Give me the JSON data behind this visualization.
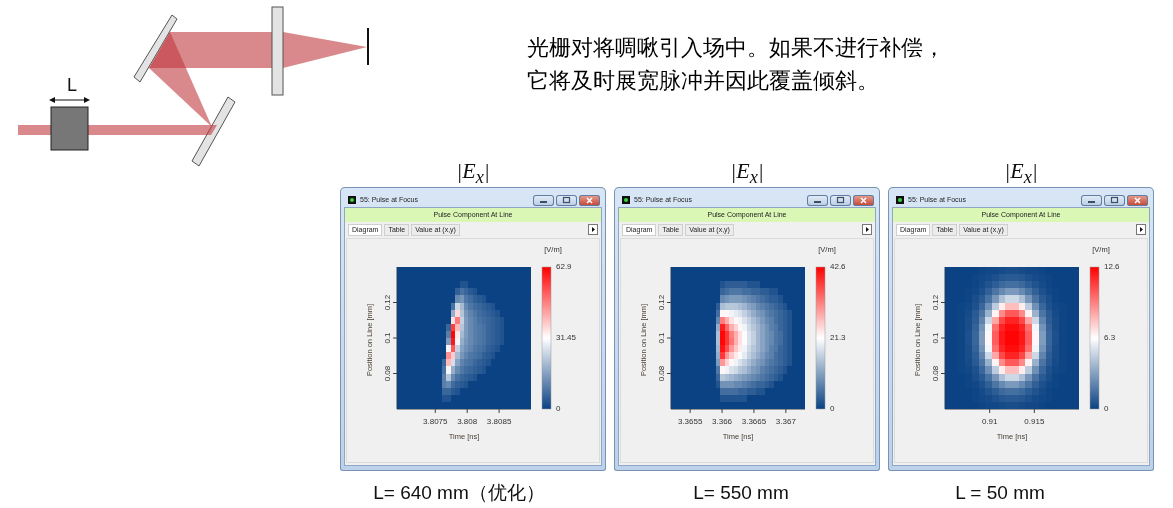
{
  "chart_data": [
    {
      "type": "other",
      "annotations": [
        "L",
        "光栅对将啁啾引入场中。如果不进行补偿，",
        "它将及时展宽脉冲并因此覆盖倾斜。"
      ]
    },
    {
      "type": "heatmap",
      "title": "|E$_{x}$|",
      "subtitle": "Pulse Component At Line",
      "xlabel": "Time [ns]",
      "ylabel": "Position on Line [mm]",
      "clabel": "[V/m]",
      "annotations": [
        "55: Pulse at Focus",
        "Diagram",
        "Table",
        "Value at (x,y)",
        "L= 640 mm（优化）"
      ],
      "x": [
        3.806935,
        3.807005,
        3.807075,
        3.807145,
        3.807215,
        3.807285,
        3.807355,
        3.807425,
        3.807495,
        3.807565,
        3.807635,
        3.807705,
        3.807775,
        3.807845,
        3.807915,
        3.807985,
        3.808055,
        3.808125,
        3.808195,
        3.808265,
        3.808335,
        3.808405,
        3.808475,
        3.808545,
        3.808615,
        3.808685,
        3.808755,
        3.808825,
        3.808895,
        3.808965
      ],
      "xlim": [
        3.8069,
        3.809
      ],
      "xticks": [
        3.8075,
        3.808,
        3.8085
      ],
      "ylim": [
        0.06,
        0.14
      ],
      "yticks": [
        0.08,
        0.1,
        0.12
      ],
      "clim": [
        0,
        62.9
      ],
      "cticks": [
        0,
        31.45,
        62.9
      ],
      "colors": [
        "#0a4283",
        "#ffffff",
        "#ff0000"
      ],
      "cells": [
        [
          0,
          0,
          0,
          0,
          0,
          0,
          0,
          0,
          0,
          0,
          0,
          0,
          0,
          0,
          0,
          0,
          0,
          0,
          0,
          0,
          0,
          0,
          0,
          0,
          0,
          0,
          0,
          0,
          0,
          0
        ],
        [
          0,
          0,
          0,
          0,
          0,
          0,
          0,
          0,
          0,
          0,
          0,
          0,
          0,
          0,
          0,
          0,
          0,
          0,
          0,
          0,
          0,
          0,
          0,
          0,
          0,
          0,
          0,
          0,
          0,
          0
        ],
        [
          0,
          0,
          0,
          0,
          0,
          0,
          0,
          0,
          0,
          0,
          0,
          0,
          0,
          0,
          3,
          3,
          0,
          0,
          0,
          0,
          0,
          0,
          0,
          0,
          0,
          0,
          0,
          0,
          0,
          0
        ],
        [
          0,
          0,
          0,
          0,
          0,
          0,
          0,
          0,
          0,
          0,
          0,
          0,
          0,
          5,
          8,
          6,
          4,
          3,
          0,
          0,
          0,
          0,
          0,
          0,
          0,
          0,
          0,
          0,
          0,
          0
        ],
        [
          0,
          0,
          0,
          0,
          0,
          0,
          0,
          0,
          0,
          0,
          0,
          0,
          0,
          12,
          14,
          9,
          7,
          5,
          4,
          3,
          0,
          0,
          0,
          0,
          0,
          0,
          0,
          0,
          0,
          0
        ],
        [
          0,
          0,
          0,
          0,
          0,
          0,
          0,
          0,
          0,
          0,
          0,
          0,
          8,
          25,
          20,
          12,
          9,
          7,
          6,
          5,
          4,
          3,
          0,
          0,
          0,
          0,
          0,
          0,
          0,
          0
        ],
        [
          0,
          0,
          0,
          0,
          0,
          0,
          0,
          0,
          0,
          0,
          0,
          0,
          18,
          36,
          22,
          14,
          11,
          9,
          7,
          6,
          5,
          4,
          3,
          0,
          0,
          0,
          0,
          0,
          0,
          0
        ],
        [
          0,
          0,
          0,
          0,
          0,
          0,
          0,
          0,
          0,
          0,
          0,
          0,
          35,
          48,
          24,
          15,
          12,
          10,
          8,
          7,
          6,
          5,
          4,
          3,
          0,
          0,
          0,
          0,
          0,
          0
        ],
        [
          0,
          0,
          0,
          0,
          0,
          0,
          0,
          0,
          0,
          0,
          0,
          6,
          55,
          40,
          22,
          15,
          12,
          10,
          9,
          8,
          6,
          5,
          4,
          3,
          0,
          0,
          0,
          0,
          0,
          0
        ],
        [
          0,
          0,
          0,
          0,
          0,
          0,
          0,
          0,
          0,
          0,
          0,
          10,
          62,
          34,
          20,
          15,
          12,
          10,
          9,
          8,
          6,
          5,
          4,
          3,
          0,
          0,
          0,
          0,
          0,
          0
        ],
        [
          0,
          0,
          0,
          0,
          0,
          0,
          0,
          0,
          0,
          0,
          0,
          15,
          60,
          30,
          18,
          14,
          12,
          10,
          9,
          8,
          6,
          5,
          4,
          3,
          0,
          0,
          0,
          0,
          0,
          0
        ],
        [
          0,
          0,
          0,
          0,
          0,
          0,
          0,
          0,
          0,
          0,
          0,
          30,
          52,
          24,
          16,
          13,
          11,
          9,
          8,
          7,
          5,
          4,
          3,
          0,
          0,
          0,
          0,
          0,
          0,
          0
        ],
        [
          0,
          0,
          0,
          0,
          0,
          0,
          0,
          0,
          0,
          0,
          0,
          45,
          38,
          20,
          14,
          11,
          9,
          8,
          7,
          5,
          4,
          3,
          0,
          0,
          0,
          0,
          0,
          0,
          0,
          0
        ],
        [
          0,
          0,
          0,
          0,
          0,
          0,
          0,
          0,
          0,
          0,
          6,
          40,
          26,
          16,
          11,
          9,
          8,
          6,
          5,
          4,
          3,
          0,
          0,
          0,
          0,
          0,
          0,
          0,
          0,
          0
        ],
        [
          0,
          0,
          0,
          0,
          0,
          0,
          0,
          0,
          0,
          0,
          8,
          30,
          18,
          12,
          9,
          7,
          6,
          5,
          4,
          3,
          0,
          0,
          0,
          0,
          0,
          0,
          0,
          0,
          0,
          0
        ],
        [
          0,
          0,
          0,
          0,
          0,
          0,
          0,
          0,
          0,
          0,
          10,
          22,
          12,
          8,
          6,
          5,
          4,
          3,
          0,
          0,
          0,
          0,
          0,
          0,
          0,
          0,
          0,
          0,
          0,
          0
        ],
        [
          0,
          0,
          0,
          0,
          0,
          0,
          0,
          0,
          0,
          0,
          10,
          12,
          7,
          5,
          4,
          3,
          0,
          0,
          0,
          0,
          0,
          0,
          0,
          0,
          0,
          0,
          0,
          0,
          0,
          0
        ],
        [
          0,
          0,
          0,
          0,
          0,
          0,
          0,
          0,
          0,
          0,
          6,
          6,
          4,
          3,
          0,
          0,
          0,
          0,
          0,
          0,
          0,
          0,
          0,
          0,
          0,
          0,
          0,
          0,
          0,
          0
        ],
        [
          0,
          0,
          0,
          0,
          0,
          0,
          0,
          0,
          0,
          0,
          3,
          3,
          0,
          0,
          0,
          0,
          0,
          0,
          0,
          0,
          0,
          0,
          0,
          0,
          0,
          0,
          0,
          0,
          0,
          0
        ],
        [
          0,
          0,
          0,
          0,
          0,
          0,
          0,
          0,
          0,
          0,
          0,
          0,
          0,
          0,
          0,
          0,
          0,
          0,
          0,
          0,
          0,
          0,
          0,
          0,
          0,
          0,
          0,
          0,
          0,
          0
        ]
      ]
    },
    {
      "type": "heatmap",
      "title": "|E$_{x}$|",
      "subtitle": "Pulse Component At Line",
      "xlabel": "Time [ns]",
      "ylabel": "Position on Line [mm]",
      "clabel": "[V/m]",
      "annotations": [
        "55: Pulse at Focus",
        "Diagram",
        "Table",
        "Value at (x,y)",
        "L= 550 mm"
      ],
      "x": [
        3.365235,
        3.365305,
        3.365375,
        3.365445,
        3.365515,
        3.365585,
        3.365655,
        3.365725,
        3.365795,
        3.365865,
        3.365935,
        3.366005,
        3.366075,
        3.366145,
        3.366215,
        3.366285,
        3.366355,
        3.366425,
        3.366495,
        3.366565,
        3.366635,
        3.366705,
        3.366775,
        3.366845,
        3.366915,
        3.366985,
        3.367055,
        3.367125,
        3.367195,
        3.367265
      ],
      "xlim": [
        3.3652,
        3.3673
      ],
      "xticks": [
        3.3655,
        3.366,
        3.3665,
        3.367
      ],
      "ylim": [
        0.06,
        0.14
      ],
      "yticks": [
        0.08,
        0.1,
        0.12
      ],
      "clim": [
        0,
        42.6
      ],
      "cticks": [
        0,
        21.3,
        42.6
      ],
      "colors": [
        "#0a4283",
        "#ffffff",
        "#ff0000"
      ],
      "cells": [
        [
          0,
          0,
          0,
          0,
          0,
          0,
          0,
          0,
          0,
          0,
          0,
          0,
          0,
          0,
          0,
          0,
          0,
          0,
          0,
          0,
          0,
          0,
          0,
          0,
          0,
          0,
          0,
          0,
          0,
          0
        ],
        [
          0,
          0,
          0,
          0,
          0,
          0,
          0,
          0,
          0,
          0,
          0,
          0,
          0,
          0,
          0,
          0,
          0,
          0,
          0,
          0,
          0,
          0,
          0,
          0,
          0,
          0,
          0,
          0,
          0,
          0
        ],
        [
          0,
          0,
          0,
          0,
          0,
          0,
          0,
          0,
          0,
          0,
          0,
          2,
          3,
          3,
          3,
          3,
          3,
          2,
          2,
          2,
          0,
          0,
          0,
          0,
          0,
          0,
          0,
          0,
          0,
          0
        ],
        [
          0,
          0,
          0,
          0,
          0,
          0,
          0,
          0,
          0,
          0,
          0,
          4,
          5,
          6,
          6,
          6,
          5,
          5,
          4,
          4,
          3,
          3,
          2,
          2,
          0,
          0,
          0,
          0,
          0,
          0
        ],
        [
          0,
          0,
          0,
          0,
          0,
          0,
          0,
          0,
          0,
          0,
          0,
          8,
          9,
          10,
          10,
          10,
          9,
          8,
          7,
          6,
          5,
          4,
          3,
          3,
          2,
          0,
          0,
          0,
          0,
          0
        ],
        [
          0,
          0,
          0,
          0,
          0,
          0,
          0,
          0,
          0,
          0,
          3,
          14,
          15,
          15,
          15,
          14,
          13,
          11,
          10,
          8,
          7,
          6,
          5,
          4,
          3,
          2,
          0,
          0,
          0,
          0
        ],
        [
          0,
          0,
          0,
          0,
          0,
          0,
          0,
          0,
          0,
          0,
          5,
          22,
          22,
          20,
          19,
          18,
          16,
          14,
          12,
          10,
          9,
          7,
          6,
          5,
          4,
          3,
          2,
          0,
          0,
          0
        ],
        [
          0,
          0,
          0,
          0,
          0,
          0,
          0,
          0,
          0,
          0,
          8,
          32,
          28,
          24,
          22,
          20,
          18,
          16,
          14,
          12,
          10,
          8,
          7,
          5,
          4,
          3,
          2,
          0,
          0,
          0
        ],
        [
          0,
          0,
          0,
          0,
          0,
          0,
          0,
          0,
          0,
          0,
          12,
          40,
          34,
          28,
          25,
          22,
          20,
          17,
          15,
          13,
          11,
          9,
          7,
          6,
          4,
          3,
          2,
          0,
          0,
          0
        ],
        [
          0,
          0,
          0,
          0,
          0,
          0,
          0,
          0,
          0,
          0,
          14,
          42,
          38,
          32,
          28,
          24,
          21,
          18,
          16,
          13,
          11,
          9,
          8,
          6,
          5,
          3,
          2,
          0,
          0,
          0
        ],
        [
          0,
          0,
          0,
          0,
          0,
          0,
          0,
          0,
          0,
          0,
          14,
          42,
          38,
          33,
          28,
          24,
          21,
          18,
          16,
          13,
          11,
          9,
          8,
          6,
          5,
          3,
          2,
          0,
          0,
          0
        ],
        [
          0,
          0,
          0,
          0,
          0,
          0,
          0,
          0,
          0,
          0,
          13,
          41,
          36,
          30,
          26,
          23,
          20,
          17,
          15,
          13,
          11,
          9,
          7,
          6,
          4,
          3,
          2,
          0,
          0,
          0
        ],
        [
          0,
          0,
          0,
          0,
          0,
          0,
          0,
          0,
          0,
          0,
          12,
          38,
          30,
          26,
          23,
          21,
          19,
          16,
          14,
          12,
          10,
          8,
          7,
          5,
          4,
          3,
          2,
          0,
          0,
          0
        ],
        [
          0,
          0,
          0,
          0,
          0,
          0,
          0,
          0,
          0,
          0,
          10,
          30,
          25,
          22,
          20,
          18,
          16,
          14,
          12,
          10,
          9,
          7,
          6,
          5,
          4,
          3,
          2,
          0,
          0,
          0
        ],
        [
          0,
          0,
          0,
          0,
          0,
          0,
          0,
          0,
          0,
          0,
          6,
          22,
          20,
          18,
          17,
          15,
          14,
          12,
          10,
          9,
          7,
          6,
          5,
          4,
          3,
          2,
          0,
          0,
          0,
          0
        ],
        [
          0,
          0,
          0,
          0,
          0,
          0,
          0,
          0,
          0,
          0,
          4,
          15,
          14,
          13,
          12,
          11,
          10,
          9,
          8,
          7,
          6,
          5,
          4,
          3,
          2,
          0,
          0,
          0,
          0,
          0
        ],
        [
          0,
          0,
          0,
          0,
          0,
          0,
          0,
          0,
          0,
          0,
          2,
          9,
          9,
          9,
          8,
          8,
          7,
          6,
          5,
          4,
          4,
          3,
          2,
          0,
          0,
          0,
          0,
          0,
          0,
          0
        ],
        [
          0,
          0,
          0,
          0,
          0,
          0,
          0,
          0,
          0,
          0,
          0,
          5,
          5,
          5,
          5,
          4,
          4,
          3,
          3,
          2,
          2,
          0,
          0,
          0,
          0,
          0,
          0,
          0,
          0,
          0
        ],
        [
          0,
          0,
          0,
          0,
          0,
          0,
          0,
          0,
          0,
          0,
          0,
          2,
          2,
          2,
          2,
          2,
          2,
          0,
          0,
          0,
          0,
          0,
          0,
          0,
          0,
          0,
          0,
          0,
          0,
          0
        ],
        [
          0,
          0,
          0,
          0,
          0,
          0,
          0,
          0,
          0,
          0,
          0,
          0,
          0,
          0,
          0,
          0,
          0,
          0,
          0,
          0,
          0,
          0,
          0,
          0,
          0,
          0,
          0,
          0,
          0,
          0
        ]
      ]
    },
    {
      "type": "heatmap",
      "title": "|E$_{x}$|",
      "subtitle": "Pulse Component At Line",
      "xlabel": "Time [ns]",
      "ylabel": "Position on Line [mm]",
      "clabel": "[V/m]",
      "annotations": [
        "55: Pulse at Focus",
        "Diagram",
        "Table",
        "Value at (x,y)",
        "L = 50 mm"
      ],
      "x": [
        0.905375,
        0.906125,
        0.906875,
        0.907625,
        0.908375,
        0.909125,
        0.909875,
        0.910625,
        0.911375,
        0.912125,
        0.912875,
        0.913625,
        0.914375,
        0.915125,
        0.915875,
        0.916625,
        0.917375,
        0.918125,
        0.918875,
        0.919625
      ],
      "xlim": [
        0.905,
        0.92
      ],
      "xticks": [
        0.91,
        0.915
      ],
      "ylim": [
        0.06,
        0.14
      ],
      "yticks": [
        0.08,
        0.1,
        0.12
      ],
      "clim": [
        0,
        12.6
      ],
      "cticks": [
        0,
        6.3,
        12.6
      ],
      "colors": [
        "#0a4283",
        "#ffffff",
        "#ff0000"
      ],
      "cells": [
        [
          0,
          0,
          0,
          0,
          0,
          0.1,
          0.2,
          0.2,
          0.3,
          0.4,
          0.4,
          0.3,
          0.2,
          0.2,
          0.1,
          0,
          0,
          0,
          0,
          0
        ],
        [
          0,
          0,
          0,
          0,
          0.1,
          0.2,
          0.3,
          0.5,
          0.7,
          0.8,
          0.8,
          0.7,
          0.5,
          0.3,
          0.2,
          0.1,
          0,
          0,
          0,
          0
        ],
        [
          0,
          0,
          0,
          0,
          0.1,
          0.3,
          0.6,
          0.9,
          1.3,
          1.5,
          1.5,
          1.3,
          0.9,
          0.6,
          0.3,
          0.1,
          0,
          0,
          0,
          0
        ],
        [
          0,
          0,
          0,
          0.1,
          0.2,
          0.5,
          1,
          1.7,
          2.4,
          2.9,
          2.9,
          2.4,
          1.7,
          1,
          0.5,
          0.2,
          0.1,
          0,
          0,
          0
        ],
        [
          0,
          0,
          0,
          0.1,
          0.4,
          0.8,
          1.6,
          2.8,
          4.2,
          5,
          5,
          4.2,
          2.8,
          1.6,
          0.8,
          0.4,
          0.1,
          0,
          0,
          0
        ],
        [
          0,
          0,
          0.1,
          0.2,
          0.5,
          1.2,
          2.6,
          4.6,
          6.7,
          7.9,
          7.9,
          6.7,
          4.6,
          2.6,
          1.2,
          0.5,
          0.2,
          0.1,
          0,
          0
        ],
        [
          0,
          0,
          0.1,
          0.3,
          0.8,
          1.7,
          3.7,
          6.6,
          9.2,
          10.4,
          10.4,
          9.2,
          6.6,
          3.7,
          1.7,
          0.8,
          0.3,
          0.1,
          0,
          0
        ],
        [
          0,
          0,
          0.1,
          0.4,
          0.9,
          2.2,
          5,
          8.5,
          10.8,
          11.7,
          11.7,
          10.8,
          8.5,
          5,
          2.2,
          0.9,
          0.4,
          0.1,
          0,
          0
        ],
        [
          0,
          0,
          0.1,
          0.4,
          1.1,
          2.7,
          6,
          9.9,
          11.7,
          12.3,
          12.3,
          11.7,
          9.9,
          6,
          2.7,
          1.1,
          0.4,
          0.1,
          0,
          0
        ],
        [
          0,
          0,
          0.1,
          0.5,
          1.2,
          3,
          6.5,
          10.3,
          12,
          12.5,
          12.5,
          12,
          10.3,
          6.5,
          3,
          1.2,
          0.5,
          0.1,
          0,
          0
        ],
        [
          0,
          0,
          0.1,
          0.5,
          1.2,
          3,
          6.5,
          10.3,
          12,
          12.5,
          12.5,
          12,
          10.3,
          6.5,
          3,
          1.2,
          0.5,
          0.1,
          0,
          0
        ],
        [
          0,
          0,
          0.1,
          0.4,
          1.1,
          2.7,
          6,
          9.9,
          11.7,
          12.3,
          12.3,
          11.7,
          9.9,
          6,
          2.7,
          1.1,
          0.4,
          0.1,
          0,
          0
        ],
        [
          0,
          0,
          0.1,
          0.4,
          0.9,
          2.2,
          5,
          8.5,
          10.8,
          11.7,
          11.7,
          10.8,
          8.5,
          5,
          2.2,
          0.9,
          0.4,
          0.1,
          0,
          0
        ],
        [
          0,
          0,
          0.1,
          0.3,
          0.8,
          1.7,
          3.7,
          6.6,
          9.2,
          10.4,
          10.4,
          9.2,
          6.6,
          3.7,
          1.7,
          0.8,
          0.3,
          0.1,
          0,
          0
        ],
        [
          0,
          0,
          0.1,
          0.2,
          0.5,
          1.2,
          2.6,
          4.6,
          6.7,
          7.9,
          7.9,
          6.7,
          4.6,
          2.6,
          1.2,
          0.5,
          0.2,
          0.1,
          0,
          0
        ],
        [
          0,
          0,
          0,
          0.1,
          0.4,
          0.8,
          1.6,
          2.8,
          4.2,
          5,
          5,
          4.2,
          2.8,
          1.6,
          0.8,
          0.4,
          0.1,
          0,
          0,
          0
        ],
        [
          0,
          0,
          0,
          0.1,
          0.2,
          0.5,
          1,
          1.7,
          2.4,
          2.9,
          2.9,
          2.4,
          1.7,
          1,
          0.5,
          0.2,
          0.1,
          0,
          0,
          0
        ],
        [
          0,
          0,
          0,
          0,
          0.1,
          0.3,
          0.6,
          0.9,
          1.3,
          1.5,
          1.5,
          1.3,
          0.9,
          0.6,
          0.3,
          0.1,
          0,
          0,
          0,
          0
        ],
        [
          0,
          0,
          0,
          0,
          0.1,
          0.2,
          0.3,
          0.5,
          0.7,
          0.8,
          0.8,
          0.7,
          0.5,
          0.3,
          0.2,
          0.1,
          0,
          0,
          0,
          0
        ],
        [
          0,
          0,
          0,
          0,
          0,
          0.1,
          0.2,
          0.2,
          0.3,
          0.4,
          0.4,
          0.3,
          0.2,
          0.2,
          0.1,
          0,
          0,
          0,
          0,
          0
        ]
      ]
    }
  ]
}
